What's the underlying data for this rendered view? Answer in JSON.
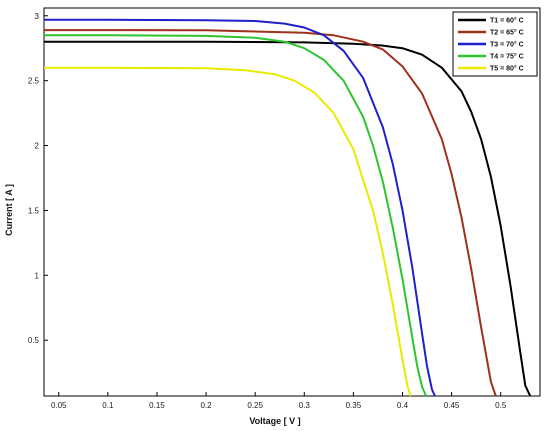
{
  "chart_data": {
    "type": "line",
    "title": "",
    "xlabel": "Voltage [ V ]",
    "ylabel": "Current [ A ]",
    "xlim": [
      0.035,
      0.54
    ],
    "ylim": [
      0.07,
      3.06
    ],
    "xticks": [
      0.05,
      0.1,
      0.15,
      0.2,
      0.25,
      0.3,
      0.35,
      0.4,
      0.45,
      0.5
    ],
    "xtick_labels": [
      "0.05",
      "0.1",
      "0.15",
      "0.2",
      "0.25",
      "0.3",
      "0.35",
      "0.4",
      "0.45",
      "0.5"
    ],
    "yticks": [
      0.5,
      1,
      1.5,
      2,
      2.5,
      3
    ],
    "ytick_labels": [
      "0.5",
      "1",
      "1.5",
      "2",
      "2.5",
      "3"
    ],
    "grid": false,
    "legend_position": "top-right",
    "series": [
      {
        "name": "T1 = 60° C",
        "color": "#000000",
        "x": [
          0.035,
          0.1,
          0.2,
          0.3,
          0.35,
          0.38,
          0.4,
          0.42,
          0.44,
          0.46,
          0.47,
          0.48,
          0.49,
          0.5,
          0.51,
          0.52,
          0.525,
          0.53
        ],
        "y": [
          2.8,
          2.8,
          2.8,
          2.795,
          2.785,
          2.77,
          2.75,
          2.7,
          2.6,
          2.42,
          2.26,
          2.05,
          1.76,
          1.38,
          0.92,
          0.4,
          0.15,
          0.07
        ]
      },
      {
        "name": "T2 = 65° C",
        "color": "#a0301e",
        "x": [
          0.035,
          0.1,
          0.2,
          0.3,
          0.33,
          0.36,
          0.38,
          0.4,
          0.42,
          0.44,
          0.45,
          0.46,
          0.47,
          0.48,
          0.49,
          0.495
        ],
        "y": [
          2.89,
          2.89,
          2.888,
          2.87,
          2.85,
          2.8,
          2.74,
          2.61,
          2.4,
          2.05,
          1.78,
          1.45,
          1.05,
          0.6,
          0.18,
          0.07
        ]
      },
      {
        "name": "T3 = 70° C",
        "color": "#1f1fcc",
        "x": [
          0.035,
          0.1,
          0.2,
          0.25,
          0.28,
          0.3,
          0.32,
          0.34,
          0.36,
          0.38,
          0.39,
          0.4,
          0.41,
          0.42,
          0.425,
          0.43,
          0.433
        ],
        "y": [
          2.97,
          2.97,
          2.965,
          2.96,
          2.94,
          2.91,
          2.85,
          2.73,
          2.52,
          2.14,
          1.86,
          1.5,
          1.06,
          0.55,
          0.3,
          0.12,
          0.07
        ]
      },
      {
        "name": "T4 = 75° C",
        "color": "#2fc42f",
        "x": [
          0.035,
          0.1,
          0.2,
          0.25,
          0.28,
          0.3,
          0.32,
          0.34,
          0.36,
          0.37,
          0.38,
          0.39,
          0.4,
          0.41,
          0.415,
          0.42,
          0.424
        ],
        "y": [
          2.85,
          2.85,
          2.845,
          2.83,
          2.8,
          2.75,
          2.66,
          2.5,
          2.22,
          2.0,
          1.72,
          1.37,
          0.97,
          0.52,
          0.3,
          0.14,
          0.07
        ]
      },
      {
        "name": "T5 = 80° C",
        "color": "#eaea00",
        "x": [
          0.035,
          0.1,
          0.2,
          0.24,
          0.27,
          0.29,
          0.31,
          0.33,
          0.35,
          0.37,
          0.38,
          0.39,
          0.4,
          0.405,
          0.408
        ],
        "y": [
          2.6,
          2.6,
          2.595,
          2.58,
          2.55,
          2.5,
          2.41,
          2.25,
          1.97,
          1.5,
          1.17,
          0.78,
          0.35,
          0.15,
          0.07
        ]
      }
    ]
  }
}
